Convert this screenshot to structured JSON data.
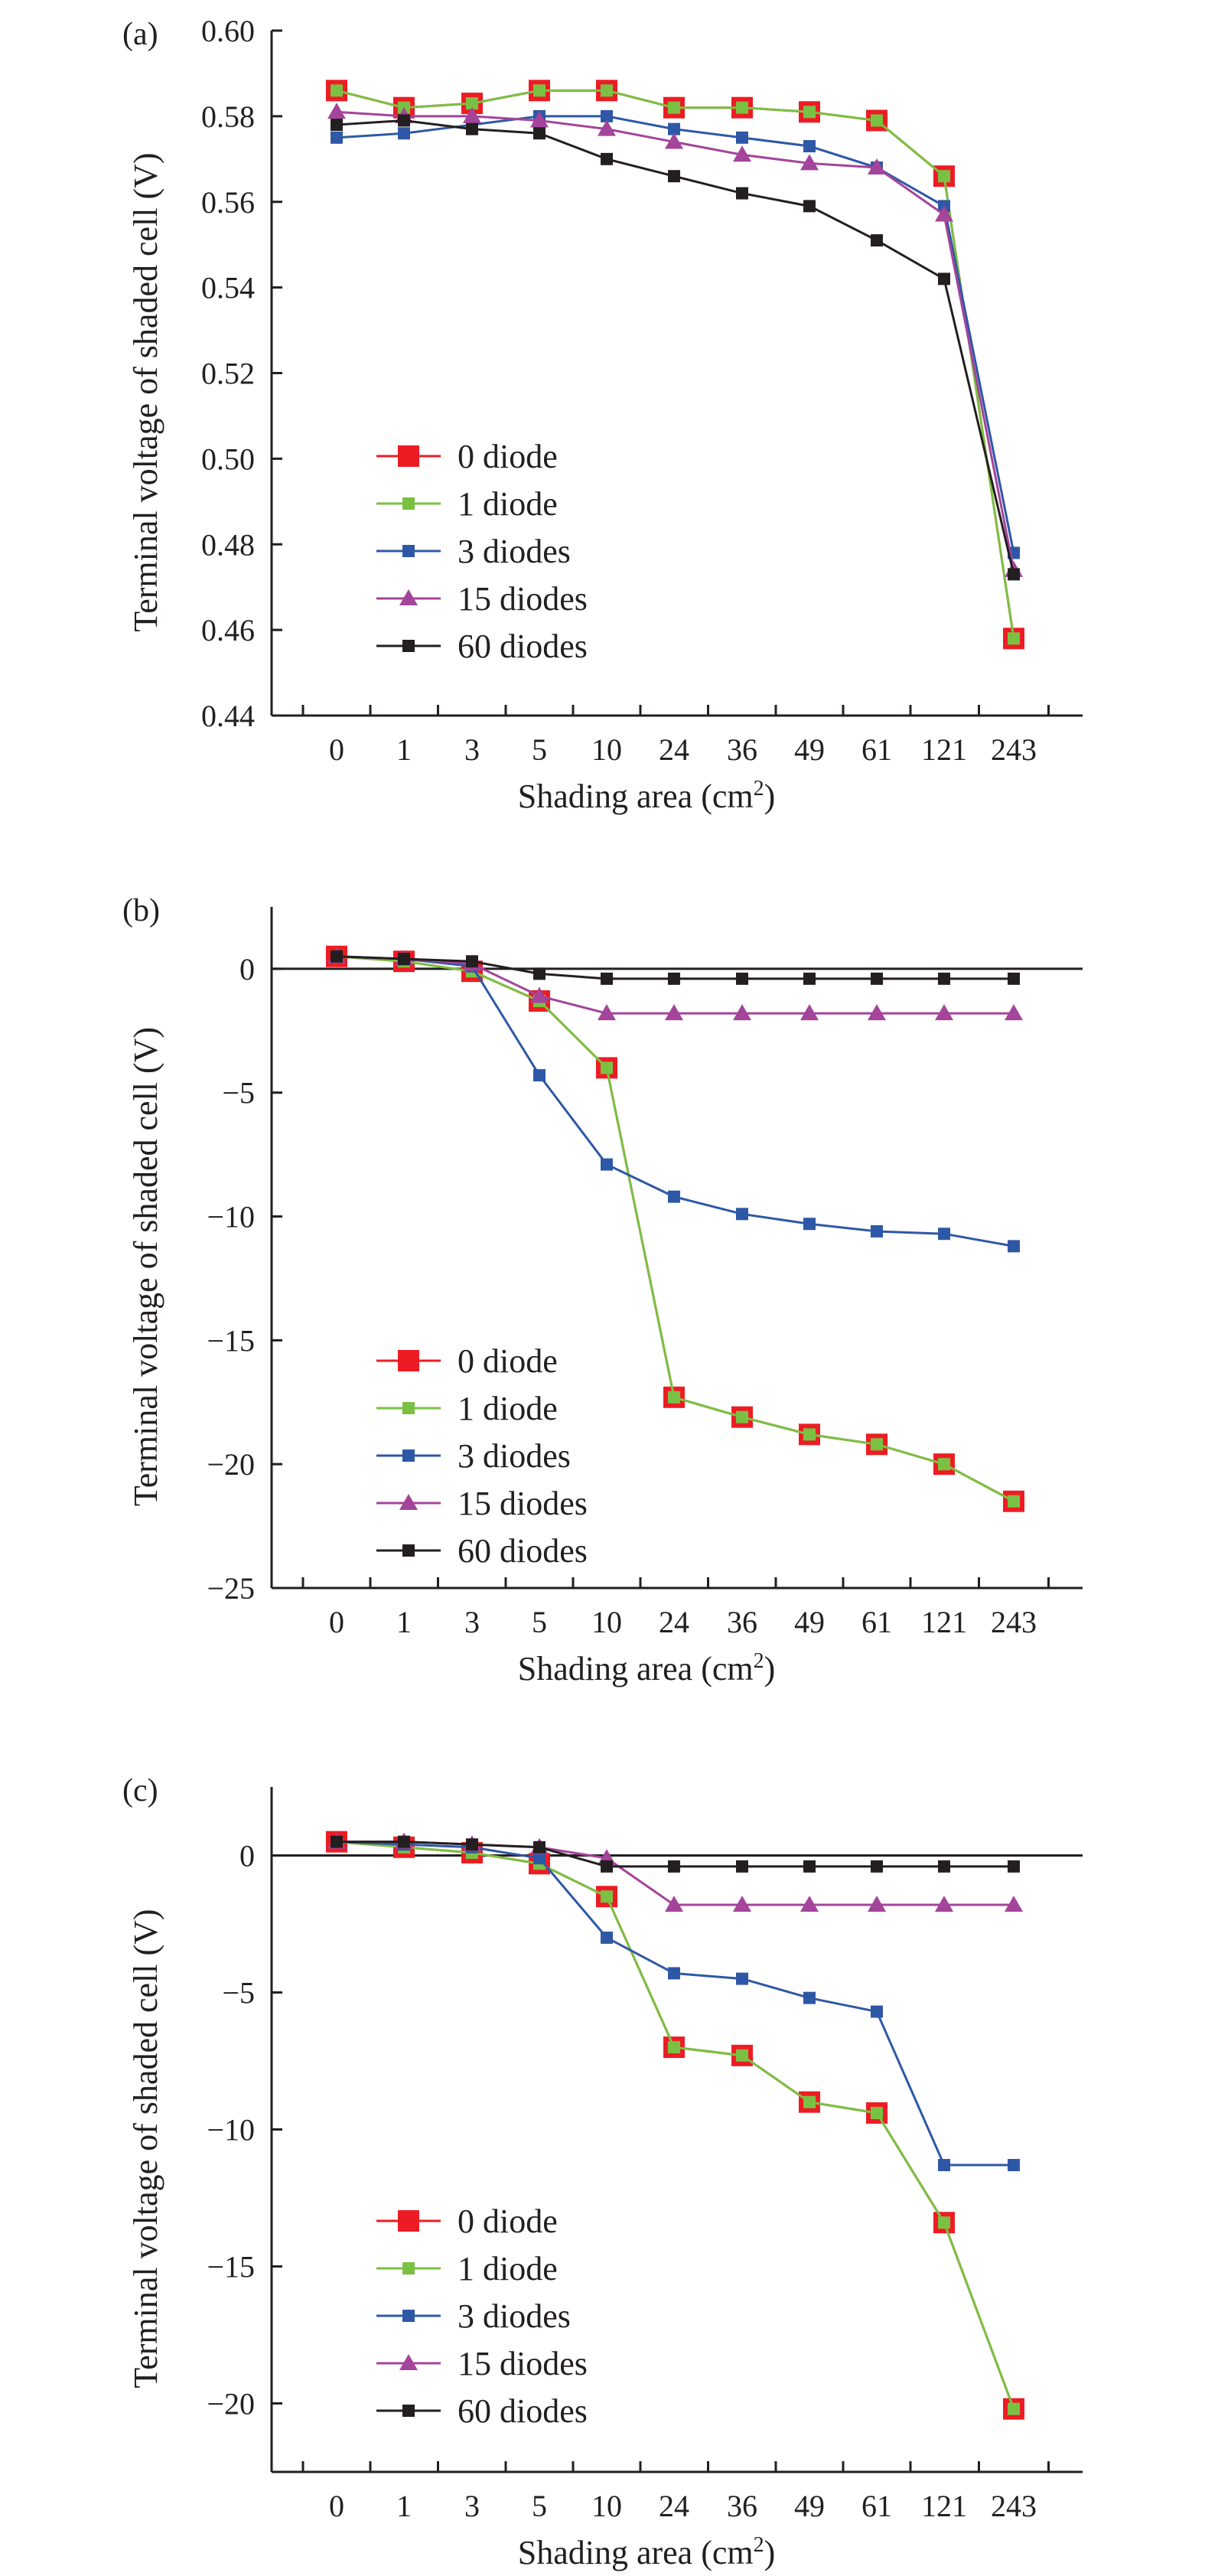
{
  "chart_data": [
    {
      "type": "line",
      "panel_label": "(a)",
      "xlabel": "Shading area (cm",
      "xlabel_sup": "2",
      "xlabel_end": ")",
      "ylabel": "Terminal voltage of shaded cell (V)",
      "categories": [
        "0",
        "1",
        "3",
        "5",
        "10",
        "24",
        "36",
        "49",
        "61",
        "121",
        "243"
      ],
      "ylim": [
        0.44,
        0.6
      ],
      "yticks": [
        0.44,
        0.46,
        0.48,
        0.5,
        0.52,
        0.54,
        0.56,
        0.58,
        0.6
      ],
      "ytick_labels": [
        "0.44",
        "0.46",
        "0.48",
        "0.50",
        "0.52",
        "0.54",
        "0.56",
        "0.58",
        "0.60"
      ],
      "zero_line": false,
      "legend": "lower-left",
      "series": [
        {
          "name": "0 diode",
          "values": [
            0.586,
            0.582,
            0.583,
            0.586,
            0.586,
            0.582,
            0.582,
            0.581,
            0.579,
            0.566,
            0.458
          ]
        },
        {
          "name": "1 diode",
          "values": [
            0.586,
            0.582,
            0.583,
            0.586,
            0.586,
            0.582,
            0.582,
            0.581,
            0.579,
            0.566,
            0.458
          ]
        },
        {
          "name": "3 diodes",
          "values": [
            0.575,
            0.576,
            0.578,
            0.58,
            0.58,
            0.577,
            0.575,
            0.573,
            0.568,
            0.559,
            0.478
          ]
        },
        {
          "name": "15 diodes",
          "values": [
            0.581,
            0.58,
            0.58,
            0.579,
            0.577,
            0.574,
            0.571,
            0.569,
            0.568,
            0.557,
            0.474
          ]
        },
        {
          "name": "60 diodes",
          "values": [
            0.578,
            0.579,
            0.577,
            0.576,
            0.57,
            0.566,
            0.562,
            0.559,
            0.551,
            0.542,
            0.473
          ]
        }
      ]
    },
    {
      "type": "line",
      "panel_label": "(b)",
      "xlabel": "Shading area (cm",
      "xlabel_sup": "2",
      "xlabel_end": ")",
      "ylabel": "Terminal voltage of shaded cell (V)",
      "categories": [
        "0",
        "1",
        "3",
        "5",
        "10",
        "24",
        "36",
        "49",
        "61",
        "121",
        "243"
      ],
      "ylim": [
        -25,
        2.5
      ],
      "yticks": [
        -25,
        -20,
        -15,
        -10,
        -5,
        0
      ],
      "ytick_labels": [
        "−25",
        "−20",
        "−15",
        "−10",
        "−5",
        "0"
      ],
      "zero_line": true,
      "legend": "lower-left",
      "series": [
        {
          "name": "0 diode",
          "values": [
            0.5,
            0.3,
            -0.1,
            -1.3,
            -4.0,
            -17.3,
            -18.1,
            -18.8,
            -19.2,
            -20.0,
            -21.5
          ]
        },
        {
          "name": "1 diode",
          "values": [
            0.5,
            0.3,
            -0.1,
            -1.3,
            -4.0,
            -17.3,
            -18.1,
            -18.8,
            -19.2,
            -20.0,
            -21.5
          ]
        },
        {
          "name": "3 diodes",
          "values": [
            0.5,
            0.4,
            0.1,
            -4.3,
            -7.9,
            -9.2,
            -9.9,
            -10.3,
            -10.6,
            -10.7,
            -11.2
          ]
        },
        {
          "name": "15 diodes",
          "values": [
            0.5,
            0.4,
            0.2,
            -1.1,
            -1.8,
            -1.8,
            -1.8,
            -1.8,
            -1.8,
            -1.8,
            -1.8
          ]
        },
        {
          "name": "60 diodes",
          "values": [
            0.5,
            0.4,
            0.3,
            -0.2,
            -0.4,
            -0.4,
            -0.4,
            -0.4,
            -0.4,
            -0.4,
            -0.4
          ]
        }
      ]
    },
    {
      "type": "line",
      "panel_label": "(c)",
      "xlabel": "Shading area (cm",
      "xlabel_sup": "2",
      "xlabel_end": ")",
      "ylabel": "Terminal voltage of shaded cell (V)",
      "categories": [
        "0",
        "1",
        "3",
        "5",
        "10",
        "24",
        "36",
        "49",
        "61",
        "121",
        "243"
      ],
      "ylim": [
        -22.5,
        2.5
      ],
      "yticks": [
        -20,
        -15,
        -10,
        -5,
        0
      ],
      "ytick_labels": [
        "−20",
        "−15",
        "−10",
        "−5",
        "0"
      ],
      "zero_line": true,
      "legend": "lower-left",
      "series": [
        {
          "name": "0 diode",
          "values": [
            0.5,
            0.3,
            0.1,
            -0.3,
            -1.5,
            -7.0,
            -7.3,
            -9.0,
            -9.4,
            -13.4,
            -20.2
          ]
        },
        {
          "name": "1 diode",
          "values": [
            0.5,
            0.3,
            0.1,
            -0.3,
            -1.5,
            -7.0,
            -7.3,
            -9.0,
            -9.4,
            -13.4,
            -20.2
          ]
        },
        {
          "name": "3 diodes",
          "values": [
            0.5,
            0.4,
            0.3,
            -0.1,
            -3.0,
            -4.3,
            -4.5,
            -5.2,
            -5.7,
            -11.3,
            -11.3
          ]
        },
        {
          "name": "15 diodes",
          "values": [
            0.5,
            0.5,
            0.4,
            0.3,
            -0.1,
            -1.8,
            -1.8,
            -1.8,
            -1.8,
            -1.8,
            -1.8
          ]
        },
        {
          "name": "60 diodes",
          "values": [
            0.5,
            0.5,
            0.4,
            0.3,
            -0.4,
            -0.4,
            -0.4,
            -0.4,
            -0.4,
            -0.4,
            -0.4
          ]
        }
      ]
    }
  ],
  "styles": {
    "axis_color": "#231f20",
    "series_colors": [
      "#ed1c24",
      "#7ac143",
      "#2e58a6",
      "#a4449a",
      "#231f20"
    ],
    "series_markers": [
      "big-square",
      "small-square",
      "small-square",
      "triangle",
      "small-square"
    ]
  }
}
